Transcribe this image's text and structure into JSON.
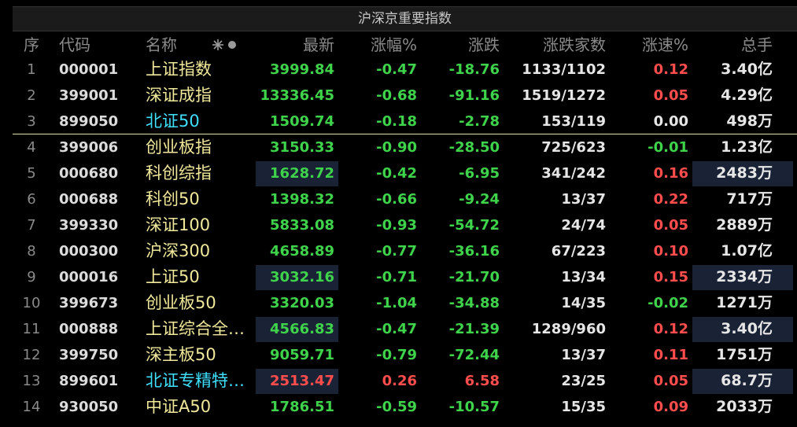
{
  "header": {
    "title": "沪深京重要指数"
  },
  "table": {
    "columns": [
      "序",
      "代码",
      "名称",
      "最新",
      "涨幅%",
      "涨跌",
      "涨跌家数",
      "涨速%",
      "总手"
    ],
    "rows": [
      [
        "1",
        "000001",
        "上证指数",
        "3999.84",
        "-0.47",
        "-18.76",
        "1133/1102",
        "0.12",
        "3.40亿"
      ],
      [
        "2",
        "399001",
        "深证成指",
        "13336.45",
        "-0.68",
        "-91.16",
        "1519/1272",
        "0.05",
        "4.29亿"
      ],
      [
        "3",
        "899050",
        "北证50",
        "1509.74",
        "-0.18",
        "-2.78",
        "153/119",
        "0.00",
        "498万"
      ],
      [
        "4",
        "399006",
        "创业板指",
        "3150.33",
        "-0.90",
        "-28.50",
        "725/623",
        "-0.01",
        "1.23亿"
      ],
      [
        "5",
        "000680",
        "科创综指",
        "1628.72",
        "-0.42",
        "-6.95",
        "341/242",
        "0.16",
        "2483万"
      ],
      [
        "6",
        "000688",
        "科创50",
        "1398.32",
        "-0.66",
        "-9.24",
        "13/37",
        "0.22",
        "717万"
      ],
      [
        "7",
        "399330",
        "深证100",
        "5833.08",
        "-0.93",
        "-54.72",
        "24/74",
        "0.05",
        "2889万"
      ],
      [
        "8",
        "000300",
        "沪深300",
        "4658.89",
        "-0.77",
        "-36.16",
        "67/223",
        "0.10",
        "1.07亿"
      ],
      [
        "9",
        "000016",
        "上证50",
        "3032.16",
        "-0.71",
        "-21.70",
        "13/34",
        "0.15",
        "2334万"
      ],
      [
        "10",
        "399673",
        "创业板50",
        "3320.03",
        "-1.04",
        "-34.88",
        "14/35",
        "-0.02",
        "1271万"
      ],
      [
        "11",
        "000888",
        "上证综合全…",
        "4566.83",
        "-0.47",
        "-21.39",
        "1289/960",
        "0.12",
        "3.40亿"
      ],
      [
        "12",
        "399750",
        "深主板50",
        "9059.71",
        "-0.79",
        "-72.44",
        "13/37",
        "0.11",
        "1751万"
      ],
      [
        "13",
        "899601",
        "北证专精特…",
        "2513.47",
        "0.26",
        "6.58",
        "23/25",
        "0.05",
        "68.7万"
      ],
      [
        "14",
        "930050",
        "中证A50",
        "1786.51",
        "-0.59",
        "-10.57",
        "15/35",
        "0.09",
        "2033万"
      ]
    ]
  }
}
